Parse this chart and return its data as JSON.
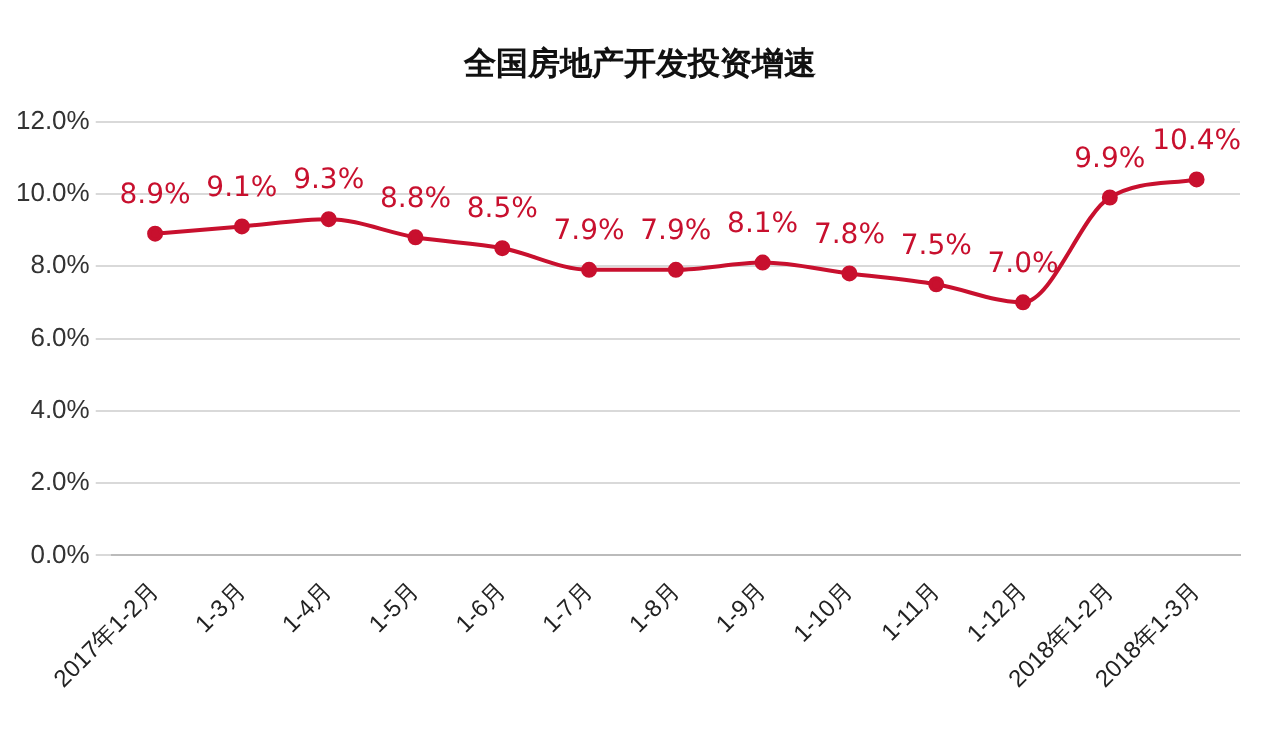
{
  "chart_data": {
    "type": "line",
    "title": "全国房地产开发投资增速",
    "categories": [
      "2017年1-2月",
      "1-3月",
      "1-4月",
      "1-5月",
      "1-6月",
      "1-7月",
      "1-8月",
      "1-9月",
      "1-10月",
      "1-11月",
      "1-12月",
      "2018年1-2月",
      "2018年1-3月"
    ],
    "series": [
      {
        "color": "#c8102e",
        "values": [
          8.9,
          9.1,
          9.3,
          8.8,
          8.5,
          7.9,
          7.9,
          8.1,
          7.8,
          7.5,
          7.0,
          9.9,
          10.4
        ],
        "value_labels": [
          "8.9%",
          "9.1%",
          "9.3%",
          "8.8%",
          "8.5%",
          "7.9%",
          "7.9%",
          "8.1%",
          "7.8%",
          "7.5%",
          "7.0%",
          "9.9%",
          "10.4%"
        ]
      }
    ],
    "ylim": [
      0,
      12
    ],
    "yticks": [
      {
        "value": 0,
        "label": "0.0%"
      },
      {
        "value": 2,
        "label": "2.0%"
      },
      {
        "value": 4,
        "label": "4.0%"
      },
      {
        "value": 6,
        "label": "6.0%"
      },
      {
        "value": 8,
        "label": "8.0%"
      },
      {
        "value": 10,
        "label": "10.0%"
      },
      {
        "value": 12,
        "label": "12.0%"
      }
    ],
    "grid": "y",
    "legend": false,
    "marker": "circle",
    "line_style": "solid"
  }
}
